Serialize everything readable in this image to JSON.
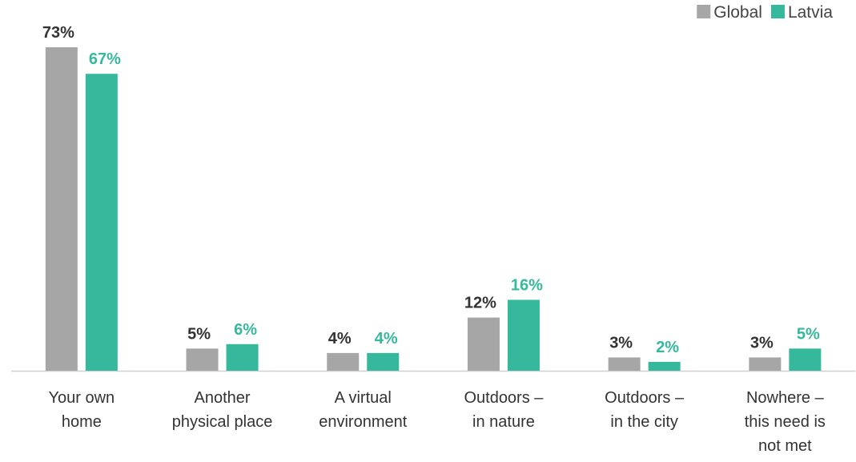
{
  "chart_data": {
    "type": "bar",
    "categories": [
      "Your own\nhome",
      "Another\nphysical place",
      "A virtual\nenvironment",
      "Outdoors –\nin nature",
      "Outdoors –\nin the city",
      "Nowhere –\nthis need is\nnot met"
    ],
    "series": [
      {
        "name": "Global",
        "color": "#a6a6a6",
        "values": [
          73,
          5,
          4,
          12,
          3,
          3
        ],
        "value_labels": [
          "73%",
          "5%",
          "4%",
          "12%",
          "3%",
          "3%"
        ]
      },
      {
        "name": "Latvia",
        "color": "#36b89c",
        "values": [
          67,
          6,
          4,
          16,
          2,
          5
        ],
        "value_labels": [
          "67%",
          "6%",
          "4%",
          "16%",
          "2%",
          "5%"
        ]
      }
    ],
    "legend": "top-right"
  }
}
